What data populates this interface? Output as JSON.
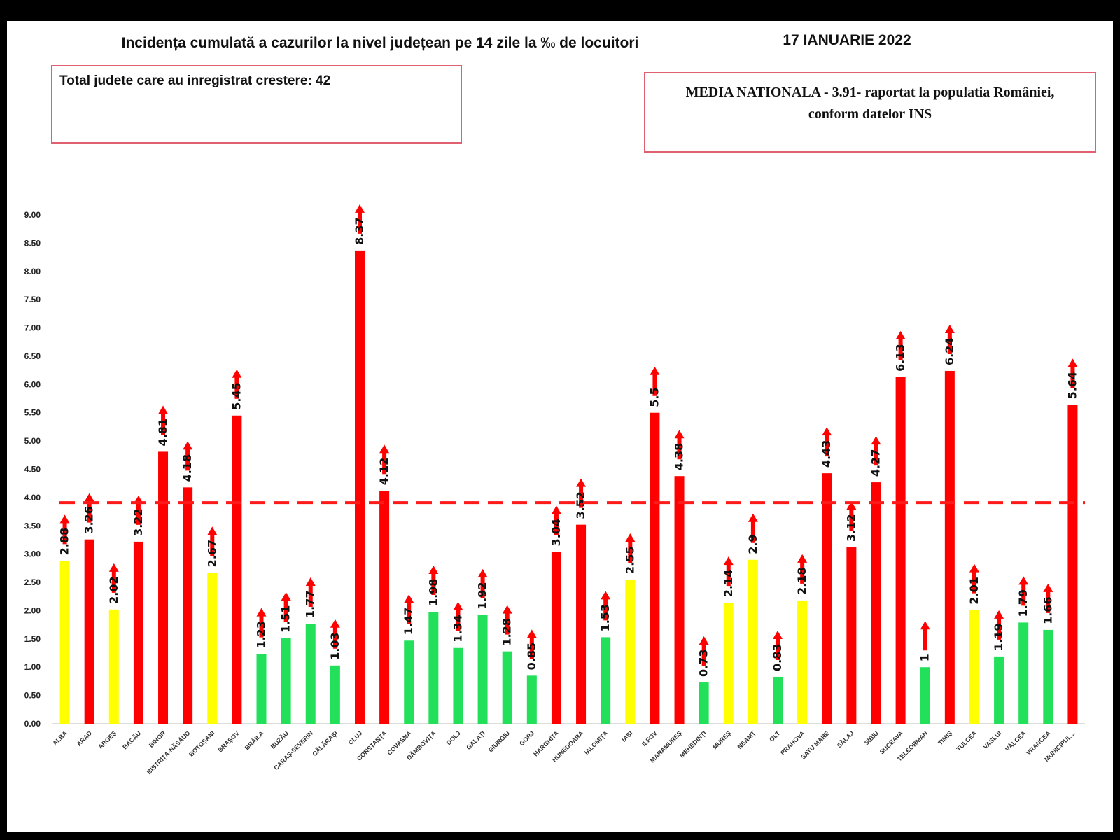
{
  "header": {
    "title": "Incidența cumulată a cazurilor la nivel județean pe 14 zile la ‰ de locuitori",
    "date": "17 IANUARIE 2022"
  },
  "info_left": {
    "text": "Total judete care au inregistrat crestere: 42"
  },
  "info_right": {
    "line1": "MEDIA NATIONALA - 3.91-  raportat la populatia României,",
    "line2": "conform datelor INS"
  },
  "colors": {
    "red": "#ff0000",
    "yellow": "#ffff00",
    "green": "#22e05a",
    "reference": "#ff1a1a",
    "arrow": "#ff0000"
  },
  "chart_data": {
    "type": "bar",
    "title": "Incidența cumulată a cazurilor la nivel județean pe 14 zile la ‰ de locuitori",
    "ylim": [
      0,
      9
    ],
    "yticks": [
      "0.00",
      "0.50",
      "1.00",
      "1.50",
      "2.00",
      "2.50",
      "3.00",
      "3.50",
      "4.00",
      "4.50",
      "5.00",
      "5.50",
      "6.00",
      "6.50",
      "7.00",
      "7.50",
      "8.00",
      "8.50",
      "9.00"
    ],
    "reference_line": {
      "label": "MEDIA NATIONALA",
      "value": 3.91
    },
    "categories": [
      "ALBA",
      "ARAD",
      "ARGEȘ",
      "BACĂU",
      "BIHOR",
      "BISTRIȚA-NĂSĂUD",
      "BOTOȘANI",
      "BRAȘOV",
      "BRĂILA",
      "BUZĂU",
      "CARAȘ-SEVERIN",
      "CĂLĂRAȘI",
      "CLUJ",
      "CONSTANȚA",
      "COVASNA",
      "DÂMBOVIȚA",
      "DOLJ",
      "GALAȚI",
      "GIURGIU",
      "GORJ",
      "HARGHITA",
      "HUNEDOARA",
      "IALOMIȚA",
      "IAȘI",
      "ILFOV",
      "MARAMUREȘ",
      "MEHEDINȚI",
      "MUREȘ",
      "NEAMȚ",
      "OLT",
      "PRAHOVA",
      "SATU MARE",
      "SĂLAJ",
      "SIBIU",
      "SUCEAVA",
      "TELEORMAN",
      "TIMIȘ",
      "TULCEA",
      "VASLUI",
      "VÂLCEA",
      "VRANCEA",
      "MUNICIPUL..."
    ],
    "values": [
      2.88,
      3.26,
      2.02,
      3.22,
      4.81,
      4.18,
      2.67,
      5.45,
      1.23,
      1.51,
      1.77,
      1.03,
      8.37,
      4.12,
      1.47,
      1.98,
      1.34,
      1.92,
      1.28,
      0.85,
      3.04,
      3.52,
      1.53,
      2.55,
      5.5,
      4.38,
      0.73,
      2.14,
      2.9,
      0.83,
      2.18,
      4.43,
      3.12,
      4.27,
      6.13,
      1,
      6.24,
      2.01,
      1.19,
      1.79,
      1.66,
      5.64
    ],
    "value_labels": [
      "2.88",
      "3.26",
      "2.02",
      "3.22",
      "4.81",
      "4.18",
      "2.67",
      "5.45",
      "1.23",
      "1.51",
      "1.77",
      "1.03",
      "8.37",
      "4.12",
      "1.47",
      "1.98",
      "1.34",
      "1.92",
      "1.28",
      "0.85",
      "3.04",
      "3.52",
      "1.53",
      "2.55",
      "5.5",
      "4.38",
      "0.73",
      "2.14",
      "2.9",
      "0.83",
      "2.18",
      "4.43",
      "3.12",
      "4.27",
      "6.13",
      "1",
      "6.24",
      "2.01",
      "1.19",
      "1.79",
      "1.66",
      "5.64"
    ],
    "bar_colors": [
      "yellow",
      "red",
      "yellow",
      "red",
      "red",
      "red",
      "yellow",
      "red",
      "green",
      "green",
      "green",
      "green",
      "red",
      "red",
      "green",
      "green",
      "green",
      "green",
      "green",
      "green",
      "red",
      "red",
      "green",
      "yellow",
      "red",
      "red",
      "green",
      "yellow",
      "yellow",
      "green",
      "yellow",
      "red",
      "red",
      "red",
      "red",
      "green",
      "red",
      "yellow",
      "green",
      "green",
      "green",
      "red"
    ],
    "trend": "increase (all 42 counties)"
  }
}
